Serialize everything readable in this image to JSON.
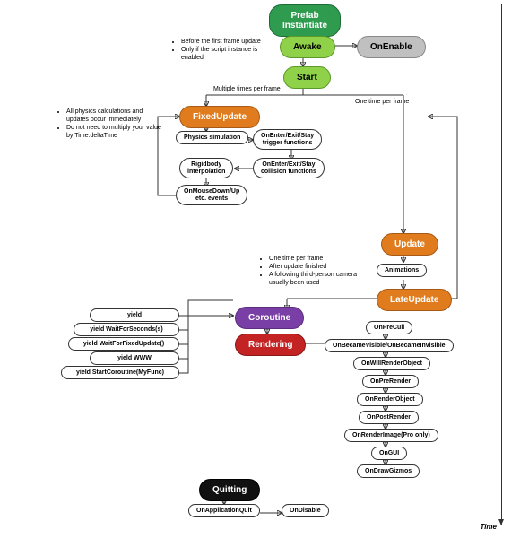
{
  "type": "flowchart",
  "colors": {
    "green_dark": "#2e9b4f",
    "green": "#8fd149",
    "gray": "#c0c0c0",
    "orange": "#e07c1e",
    "purple": "#7a3fa6",
    "red": "#c32323",
    "black": "#111111",
    "white_border": "#333333",
    "background": "#ffffff",
    "arrow": "#333333"
  },
  "nodes": {
    "prefab": "Prefab\nInstantiate",
    "awake": "Awake",
    "onEnable": "OnEnable",
    "start": "Start",
    "fixedUpdate": "FixedUpdate",
    "physics": "Physics simulation",
    "trigger": "OnEnter/Exit/Stay\ntrigger functions",
    "rigidbody": "Rigidbody\ninterpolation",
    "collision": "OnEnter/Exit/Stay\ncollision functions",
    "mouse": "OnMouseDown/Up\netc. events",
    "update": "Update",
    "animations": "Animations",
    "lateUpdate": "LateUpdate",
    "coroutine": "Coroutine",
    "rendering": "Rendering",
    "yield": "yield",
    "yieldSecs": "yield WaitForSeconds(s)",
    "yieldFixed": "yield WaitForFixedUpdate()",
    "yieldWWW": "yield WWW",
    "yieldStart": "yield StartCoroutine(MyFunc)",
    "onPreCull": "OnPreCull",
    "onBecame": "OnBecameVisible/OnBecameInvisible",
    "onWillRender": "OnWillRenderObject",
    "onPreRender": "OnPreRender",
    "onRenderObj": "OnRenderObject",
    "onPostRender": "OnPostRender",
    "onRenderImg": "OnRenderImage(Pro only)",
    "onGUI": "OnGUI",
    "onDrawGizmos": "OnDrawGizmos",
    "quitting": "Quitting",
    "onAppQuit": "OnApplicationQuit",
    "onDisable": "OnDisable"
  },
  "notes": {
    "awake": [
      "Before the first frame update",
      "Only if the script instance is enabled"
    ],
    "fixed": [
      "All physics calculations and updates occur immediately",
      "Do not need to multiply your value by Time.deltaTime"
    ],
    "late": [
      "One time per frame",
      "After update finished",
      "A following third-person camera usually been used"
    ]
  },
  "labels": {
    "multi": "Multiple times per frame",
    "once": "One time per frame",
    "time": "Time"
  }
}
